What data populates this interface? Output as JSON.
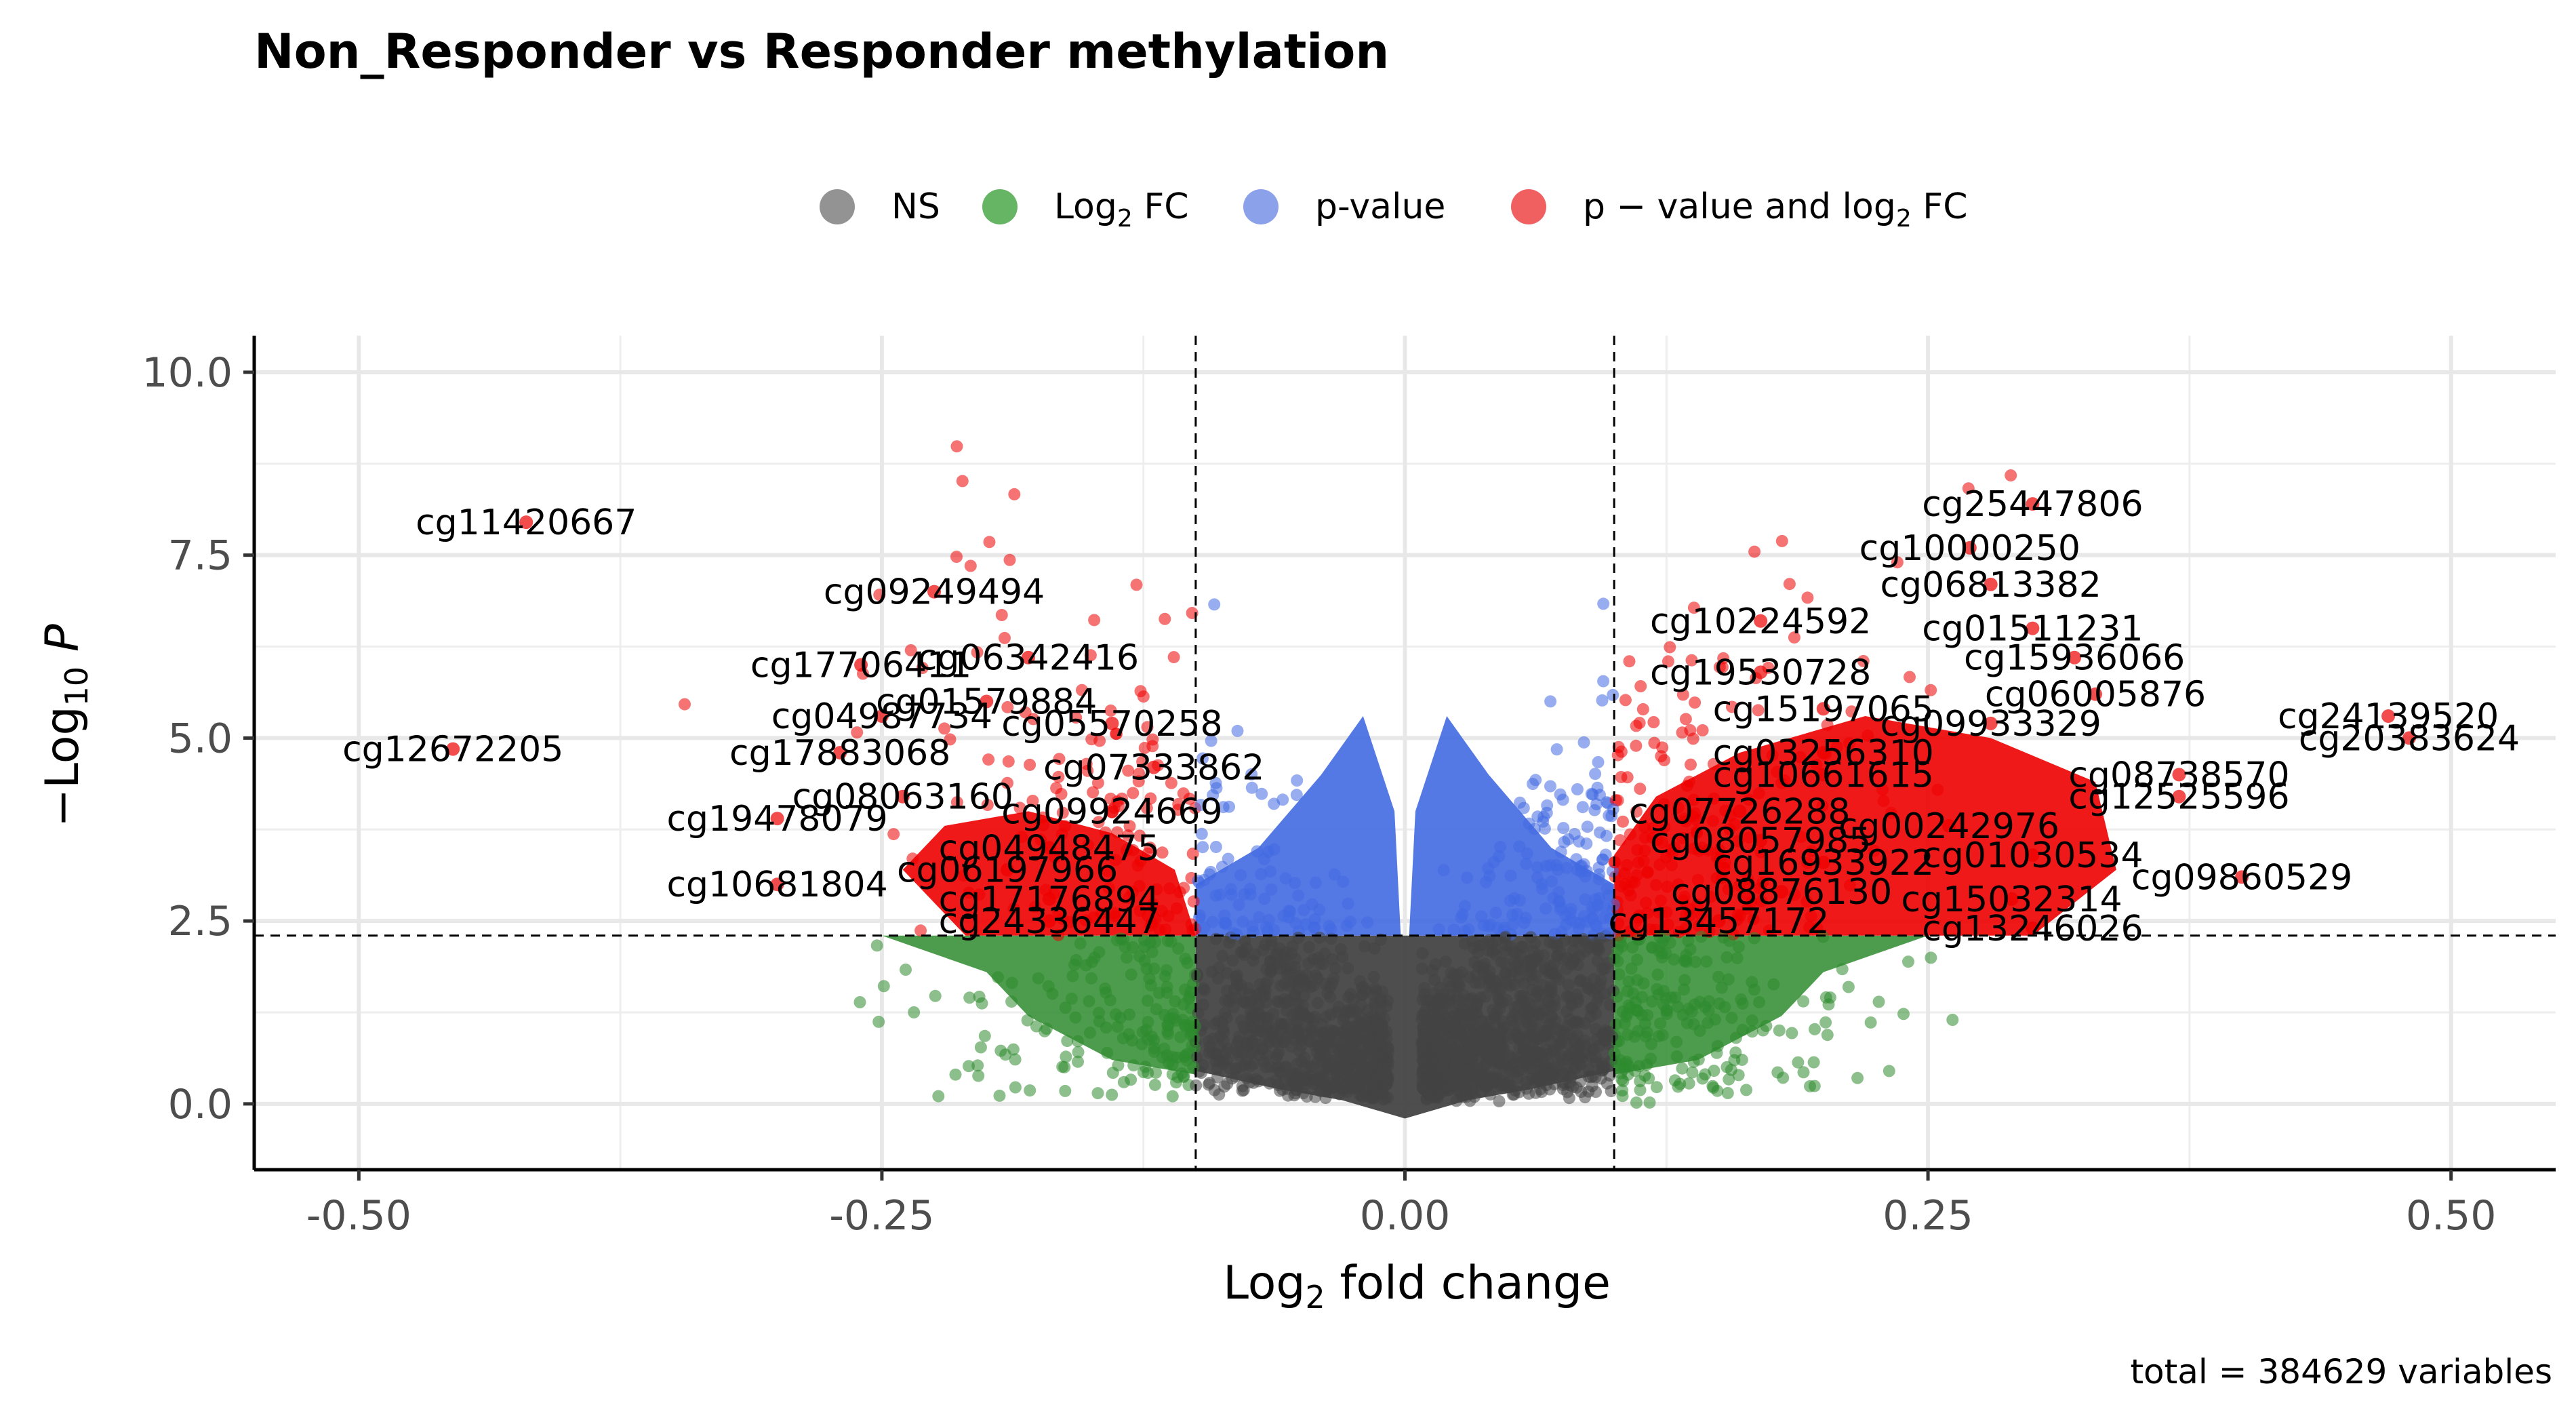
{
  "chart_data": {
    "type": "scatter",
    "subtype": "volcano",
    "title": "Non_Responder vs Responder methylation",
    "xlabel": "Log2 fold change",
    "ylabel": "-Log10 P",
    "caption": "total = 384629 variables",
    "xlim": [
      -0.55,
      0.55
    ],
    "ylim": [
      -0.9,
      10.5
    ],
    "x_ticks": [
      -0.5,
      -0.25,
      0.0,
      0.25,
      0.5
    ],
    "x_tick_labels": [
      "-0.50",
      "-0.25",
      "0.00",
      "0.25",
      "0.50"
    ],
    "y_ticks": [
      0.0,
      2.5,
      5.0,
      7.5,
      10.0
    ],
    "y_tick_labels": [
      "0.0",
      "2.5",
      "5.0",
      "7.5",
      "10.0"
    ],
    "fc_cutoff": 0.1,
    "p_cutoff_log10": 2.3,
    "grid": true,
    "legend_position": "top",
    "legend": [
      {
        "key": "NS",
        "label": "NS",
        "color": "#808080"
      },
      {
        "key": "FC",
        "label": "Log2 FC",
        "color": "#4aa84a"
      },
      {
        "key": "P",
        "label": "p-value",
        "color": "#7792e6"
      },
      {
        "key": "FC_P",
        "label": "p - value and log2 FC",
        "color": "#ee4444"
      }
    ],
    "colors": {
      "NS": "#444444",
      "FC": "#2e8b2e",
      "P": "#4169e1",
      "FC_P": "#ee0000"
    },
    "labeled_points": [
      {
        "label": "cg11420667",
        "x": -0.42,
        "y": 7.95
      },
      {
        "label": "cg12672205",
        "x": -0.455,
        "y": 4.85
      },
      {
        "label": "cg09249494",
        "x": -0.225,
        "y": 7.0
      },
      {
        "label": "cg06342416",
        "x": -0.18,
        "y": 6.1
      },
      {
        "label": "cg17706411",
        "x": -0.26,
        "y": 6.0
      },
      {
        "label": "cg01579884",
        "x": -0.2,
        "y": 5.5
      },
      {
        "label": "cg04987734",
        "x": -0.25,
        "y": 5.3
      },
      {
        "label": "cg05570258",
        "x": -0.14,
        "y": 5.2
      },
      {
        "label": "cg17883068",
        "x": -0.27,
        "y": 4.8
      },
      {
        "label": "cg07333862",
        "x": -0.12,
        "y": 4.6
      },
      {
        "label": "cg08063160",
        "x": -0.24,
        "y": 4.2
      },
      {
        "label": "cg09924669",
        "x": -0.14,
        "y": 4.0
      },
      {
        "label": "cg19478079",
        "x": -0.3,
        "y": 3.9
      },
      {
        "label": "cg04948475",
        "x": -0.17,
        "y": 3.5
      },
      {
        "label": "cg06197966",
        "x": -0.19,
        "y": 3.2
      },
      {
        "label": "cg10681804",
        "x": -0.3,
        "y": 3.0
      },
      {
        "label": "cg17176894",
        "x": -0.17,
        "y": 2.8
      },
      {
        "label": "cg24336447",
        "x": -0.17,
        "y": 2.5
      },
      {
        "label": "cg25447806",
        "x": 0.3,
        "y": 8.2
      },
      {
        "label": "cg10000250",
        "x": 0.27,
        "y": 7.6
      },
      {
        "label": "cg06813382",
        "x": 0.28,
        "y": 7.1
      },
      {
        "label": "cg10224592",
        "x": 0.17,
        "y": 6.6
      },
      {
        "label": "cg01511231",
        "x": 0.3,
        "y": 6.5
      },
      {
        "label": "cg15936066",
        "x": 0.32,
        "y": 6.1
      },
      {
        "label": "cg19530728",
        "x": 0.17,
        "y": 5.9
      },
      {
        "label": "cg06005876",
        "x": 0.33,
        "y": 5.6
      },
      {
        "label": "cg15197065",
        "x": 0.2,
        "y": 5.4
      },
      {
        "label": "cg24139520",
        "x": 0.47,
        "y": 5.3
      },
      {
        "label": "cg09933329",
        "x": 0.28,
        "y": 5.2
      },
      {
        "label": "cg20383624",
        "x": 0.48,
        "y": 5.0
      },
      {
        "label": "cg03256310",
        "x": 0.2,
        "y": 4.8
      },
      {
        "label": "cg08738570",
        "x": 0.37,
        "y": 4.5
      },
      {
        "label": "cg10661615",
        "x": 0.2,
        "y": 4.5
      },
      {
        "label": "cg12525596",
        "x": 0.37,
        "y": 4.2
      },
      {
        "label": "cg07726288",
        "x": 0.16,
        "y": 4.0
      },
      {
        "label": "cg00242976",
        "x": 0.26,
        "y": 3.8
      },
      {
        "label": "cg08057985",
        "x": 0.17,
        "y": 3.6
      },
      {
        "label": "cg01030534",
        "x": 0.3,
        "y": 3.4
      },
      {
        "label": "cg16933922",
        "x": 0.2,
        "y": 3.3
      },
      {
        "label": "cg09860529",
        "x": 0.4,
        "y": 3.1
      },
      {
        "label": "cg08876130",
        "x": 0.18,
        "y": 2.9
      },
      {
        "label": "cg15032314",
        "x": 0.29,
        "y": 2.8
      },
      {
        "label": "cg13457172",
        "x": 0.15,
        "y": 2.5
      },
      {
        "label": "cg13246026",
        "x": 0.3,
        "y": 2.4
      }
    ]
  }
}
